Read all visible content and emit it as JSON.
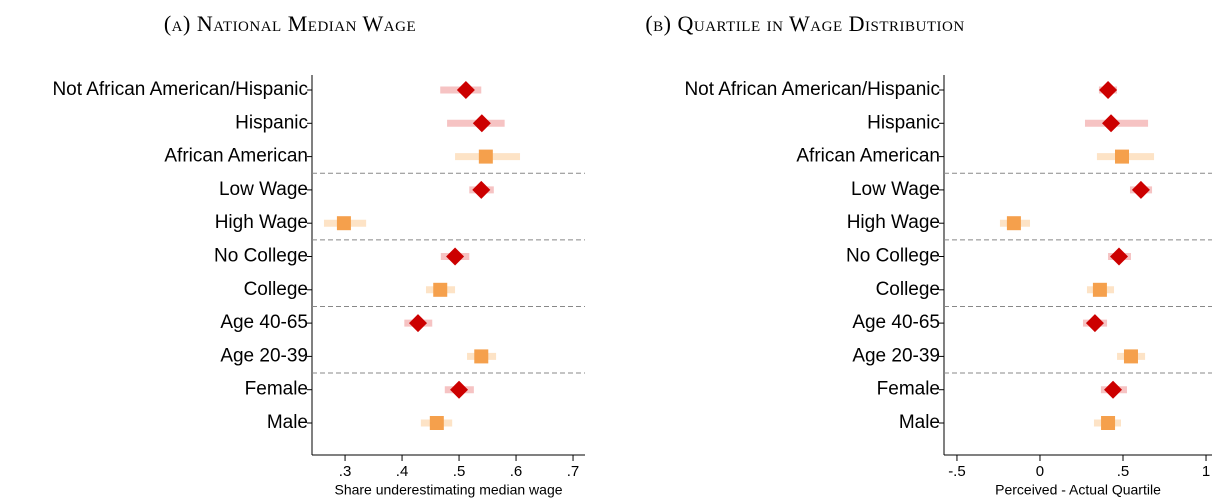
{
  "chart_data": [
    {
      "type": "dot",
      "title": "(a) National Median Wage",
      "x_label": "Share underestimating median wage",
      "categories": [
        "Not African American/Hispanic",
        "Hispanic",
        "African American",
        "Low Wage",
        "High Wage",
        "No College",
        "College",
        "Age 40-65",
        "Age 20-39",
        "Female",
        "Male"
      ],
      "values": [
        0.512,
        0.54,
        0.547,
        0.539,
        0.298,
        0.493,
        0.467,
        0.428,
        0.539,
        0.5,
        0.461
      ],
      "ci_low": [
        0.467,
        0.479,
        0.493,
        0.518,
        0.263,
        0.468,
        0.442,
        0.404,
        0.514,
        0.475,
        0.433
      ],
      "ci_high": [
        0.539,
        0.58,
        0.607,
        0.561,
        0.337,
        0.518,
        0.493,
        0.453,
        0.565,
        0.526,
        0.488
      ],
      "marker": [
        "diamond",
        "diamond",
        "square",
        "diamond",
        "square",
        "diamond",
        "square",
        "diamond",
        "square",
        "diamond",
        "square"
      ],
      "styles": {
        "diamond": {
          "color": "#cc0000",
          "ci_color": "#f6c3c3"
        },
        "square": {
          "color": "#f5a04c",
          "ci_color": "#fde3c6"
        }
      },
      "separators_after": [
        2,
        4,
        6,
        8
      ],
      "xlim": [
        0.242,
        0.721
      ],
      "xticks": [
        {
          "value": 0.3,
          "label": ".3"
        },
        {
          "value": 0.4,
          "label": ".4"
        },
        {
          "value": 0.5,
          "label": ".5"
        },
        {
          "value": 0.6,
          "label": ".6"
        },
        {
          "value": 0.7,
          "label": ".7"
        }
      ]
    },
    {
      "type": "dot",
      "title": "(b) Quartile in Wage Distribution",
      "x_label": "Perceived - Actual Quartile",
      "categories": [
        "Not African American/Hispanic",
        "Hispanic",
        "African American",
        "Low Wage",
        "High Wage",
        "No College",
        "College",
        "Age 40-65",
        "Age 20-39",
        "Female",
        "Male"
      ],
      "values": [
        0.41,
        0.428,
        0.494,
        0.608,
        -0.157,
        0.476,
        0.361,
        0.331,
        0.548,
        0.44,
        0.41
      ],
      "ci_low": [
        0.355,
        0.271,
        0.343,
        0.542,
        -0.241,
        0.41,
        0.283,
        0.259,
        0.464,
        0.367,
        0.325
      ],
      "ci_high": [
        0.464,
        0.651,
        0.687,
        0.675,
        -0.06,
        0.548,
        0.446,
        0.404,
        0.633,
        0.524,
        0.488
      ],
      "marker": [
        "diamond",
        "diamond",
        "square",
        "diamond",
        "square",
        "diamond",
        "square",
        "diamond",
        "square",
        "diamond",
        "square"
      ],
      "styles": {
        "diamond": {
          "color": "#cc0000",
          "ci_color": "#f6c3c3"
        },
        "square": {
          "color": "#f5a04c",
          "ci_color": "#fde3c6"
        }
      },
      "separators_after": [
        2,
        4,
        6,
        8
      ],
      "xlim": [
        -0.578,
        1.036
      ],
      "xticks": [
        {
          "value": -0.5,
          "label": "-.5"
        },
        0,
        {
          "value": 0.5,
          "label": ".5"
        },
        1
      ]
    }
  ]
}
